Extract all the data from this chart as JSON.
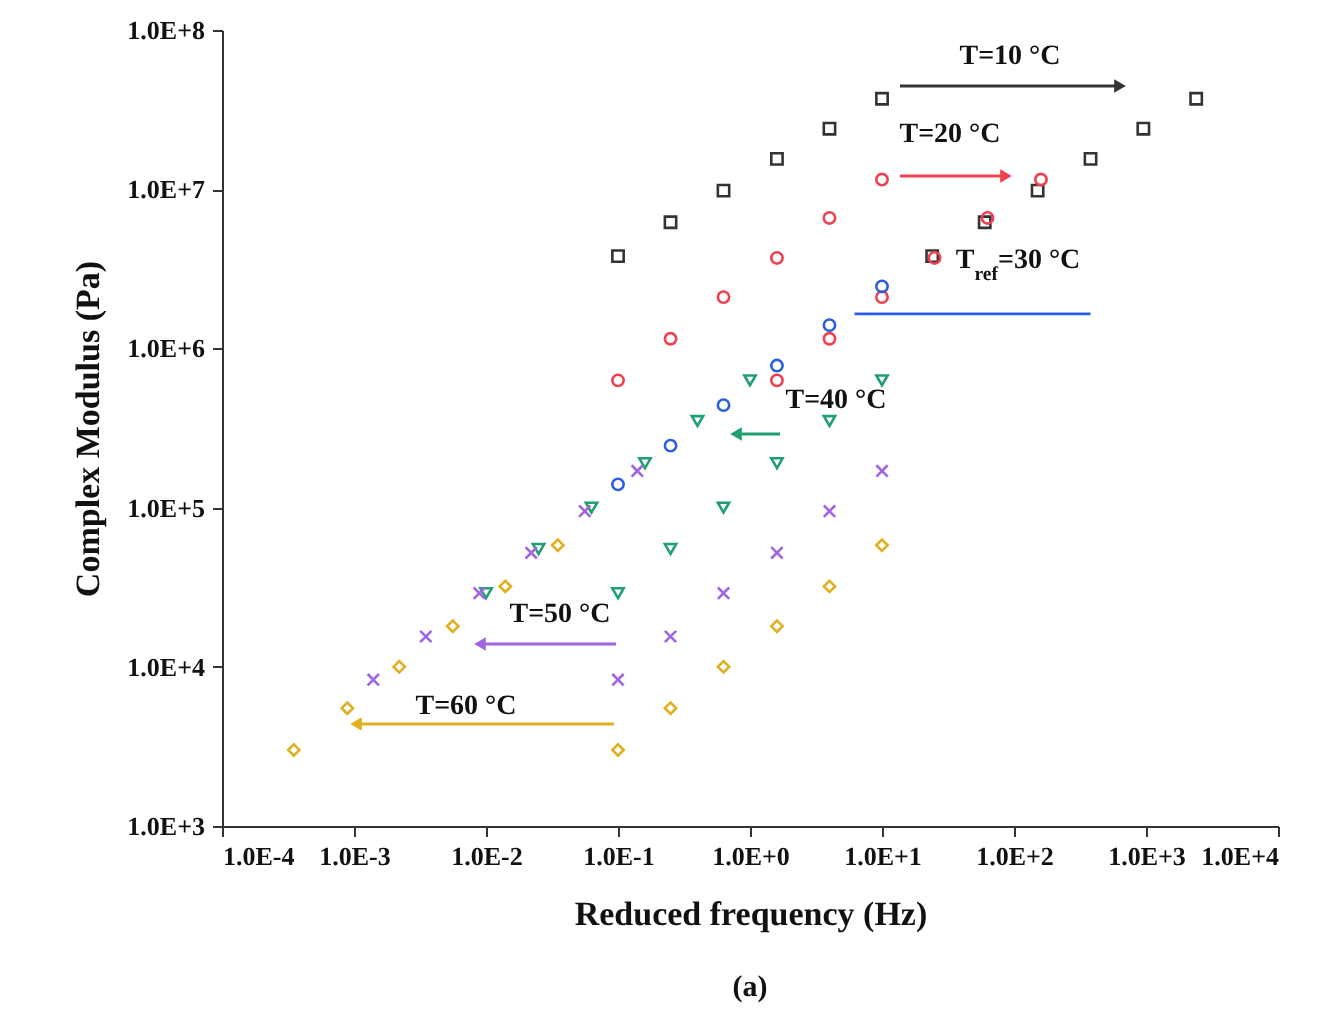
{
  "chart_data": {
    "type": "scatter",
    "xlabel": "Reduced frequency (Hz)",
    "ylabel": "Complex Modulus (Pa)",
    "log": "xy",
    "xlim": [
      0.0001,
      10000
    ],
    "ylim": [
      1000,
      100000000
    ],
    "xticks": [
      {
        "value": 0.0001,
        "label": "1.0E-4"
      },
      {
        "value": 0.001,
        "label": "1.0E-3"
      },
      {
        "value": 0.01,
        "label": "1.0E-2"
      },
      {
        "value": 0.1,
        "label": "1.0E-1"
      },
      {
        "value": 1,
        "label": "1.0E+0"
      },
      {
        "value": 10,
        "label": "1.0E+1"
      },
      {
        "value": 100,
        "label": "1.0E+2"
      },
      {
        "value": 1000,
        "label": "1.0E+3"
      },
      {
        "value": 10000,
        "label": "1.0E+4"
      }
    ],
    "yticks": [
      {
        "value": 1000,
        "label": "1.0E+3"
      },
      {
        "value": 10000,
        "label": "1.0E+4"
      },
      {
        "value": 100000,
        "label": "1.0E+5"
      },
      {
        "value": 1000000,
        "label": "1.0E+6"
      },
      {
        "value": 10000000,
        "label": "1.0E+7"
      },
      {
        "value": 100000000,
        "label": "1.0E+8"
      }
    ],
    "series": [
      {
        "color": "#333333",
        "marker": "square",
        "x": [
          0.1,
          0.25,
          0.63,
          1.6,
          4,
          10
        ],
        "values": [
          3800000,
          6200000,
          9800000,
          15500000,
          24000000,
          37000000
        ]
      },
      {
        "color": "#333333",
        "marker": "square",
        "x": [
          24,
          60,
          151,
          380,
          955,
          2400
        ],
        "values": [
          3800000,
          6200000,
          9800000,
          15500000,
          24000000,
          37000000
        ]
      },
      {
        "color": "#f0404f",
        "marker": "circle",
        "x": [
          0.1,
          0.25,
          0.63,
          1.6,
          4,
          10
        ],
        "values": [
          630000,
          1150000,
          2100000,
          3700000,
          6600000,
          11500000
        ]
      },
      {
        "color": "#f0404f",
        "marker": "circle",
        "x": [
          1.6,
          4,
          10,
          25,
          63,
          160
        ],
        "values": [
          630000,
          1150000,
          2100000,
          3700000,
          6600000,
          11500000
        ]
      },
      {
        "color": "#2a5fe0",
        "marker": "circle",
        "x": [
          0.1,
          0.25,
          0.63,
          1.6,
          4,
          10
        ],
        "values": [
          140000,
          245000,
          440000,
          780000,
          1400000,
          2450000
        ]
      },
      {
        "type": "line",
        "color": "#2a5fe0",
        "marker": "none",
        "x": [
          6.2,
          380
        ],
        "values": [
          1650000,
          1650000
        ]
      },
      {
        "color": "#20a070",
        "marker": "triangle-down",
        "x": [
          0.1,
          0.25,
          0.63,
          1.6,
          4,
          10
        ],
        "values": [
          29000,
          55000,
          100000,
          190000,
          350000,
          630000
        ]
      },
      {
        "color": "#20a070",
        "marker": "triangle-down",
        "x": [
          0.01,
          0.025,
          0.063,
          0.16,
          0.4,
          1
        ],
        "values": [
          29000,
          55000,
          100000,
          190000,
          350000,
          630000
        ]
      },
      {
        "color": "#a066e0",
        "marker": "cross",
        "x": [
          0.1,
          0.25,
          0.63,
          1.6,
          4,
          10
        ],
        "values": [
          8300,
          15500,
          29000,
          52000,
          95000,
          170000
        ]
      },
      {
        "color": "#a066e0",
        "marker": "cross",
        "x": [
          0.0014,
          0.0035,
          0.0089,
          0.022,
          0.056,
          0.14
        ],
        "values": [
          8300,
          15500,
          29000,
          52000,
          95000,
          170000
        ]
      },
      {
        "color": "#e0b020",
        "marker": "diamond",
        "x": [
          0.1,
          0.25,
          0.63,
          1.6,
          4,
          10
        ],
        "values": [
          3000,
          5500,
          10000,
          18000,
          32000,
          58000
        ]
      },
      {
        "color": "#e0b020",
        "marker": "diamond",
        "x": [
          0.00035,
          0.00089,
          0.0022,
          0.0056,
          0.014,
          0.035
        ],
        "values": [
          3000,
          5500,
          10000,
          18000,
          32000,
          58000
        ]
      }
    ],
    "annotations": [
      "T=10 °C",
      "T=20 °C",
      "T$_{ref}$=30 °C",
      "T=40 °C",
      "T=50 °C",
      "T=60 °C",
      "(a)"
    ]
  }
}
